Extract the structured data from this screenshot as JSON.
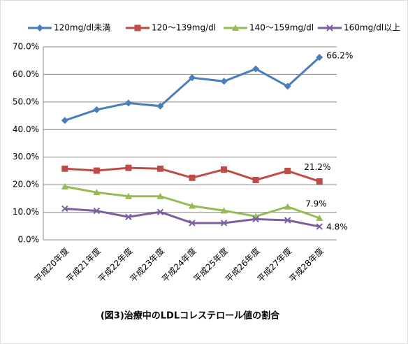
{
  "chart_data": {
    "type": "line",
    "title": "(図3)治療中のLDLコレステロール値の割合",
    "categories": [
      "平成20年度",
      "平成21年度",
      "平成22年度",
      "平成23年度",
      "平成24年度",
      "平成25年度",
      "平成26年度",
      "平成27年度",
      "平成28年度"
    ],
    "series": [
      {
        "name": "120mg/dl未満",
        "color": "#4a7ebb",
        "marker": "diamond",
        "values": [
          43.3,
          47.2,
          49.6,
          48.5,
          58.8,
          57.5,
          62.0,
          55.7,
          66.2
        ],
        "value_labels": [
          null,
          null,
          null,
          null,
          null,
          null,
          null,
          null,
          "66.2%"
        ]
      },
      {
        "name": "120～139mg/dl",
        "color": "#be4b48",
        "marker": "square",
        "values": [
          25.8,
          25.1,
          26.1,
          25.8,
          22.5,
          25.5,
          21.7,
          25.0,
          21.2
        ],
        "value_labels": [
          null,
          null,
          null,
          null,
          null,
          null,
          null,
          null,
          "21.2%"
        ]
      },
      {
        "name": "140～159mg/dl",
        "color": "#98b954",
        "marker": "triangle",
        "values": [
          19.3,
          17.2,
          15.8,
          15.8,
          12.3,
          10.6,
          8.5,
          12.0,
          7.9
        ],
        "value_labels": [
          null,
          null,
          null,
          null,
          null,
          null,
          null,
          null,
          "7.9%"
        ]
      },
      {
        "name": "160mg/dl以上",
        "color": "#7d5fa0",
        "marker": "x",
        "values": [
          11.3,
          10.5,
          8.3,
          10.1,
          6.1,
          6.1,
          7.5,
          7.1,
          4.8
        ],
        "value_labels": [
          null,
          null,
          null,
          null,
          null,
          null,
          null,
          null,
          "4.8%"
        ]
      }
    ],
    "ylim": [
      0,
      70
    ],
    "yticks": [
      {
        "value": 0,
        "label": "0.0%"
      },
      {
        "value": 10,
        "label": "10.0%"
      },
      {
        "value": 20,
        "label": "20.0%"
      },
      {
        "value": 30,
        "label": "30.0%"
      },
      {
        "value": 40,
        "label": "40.0%"
      },
      {
        "value": 50,
        "label": "50.0%"
      },
      {
        "value": 60,
        "label": "60.0%"
      },
      {
        "value": 70,
        "label": "70.0%"
      }
    ],
    "grid": true,
    "legend": "top"
  }
}
